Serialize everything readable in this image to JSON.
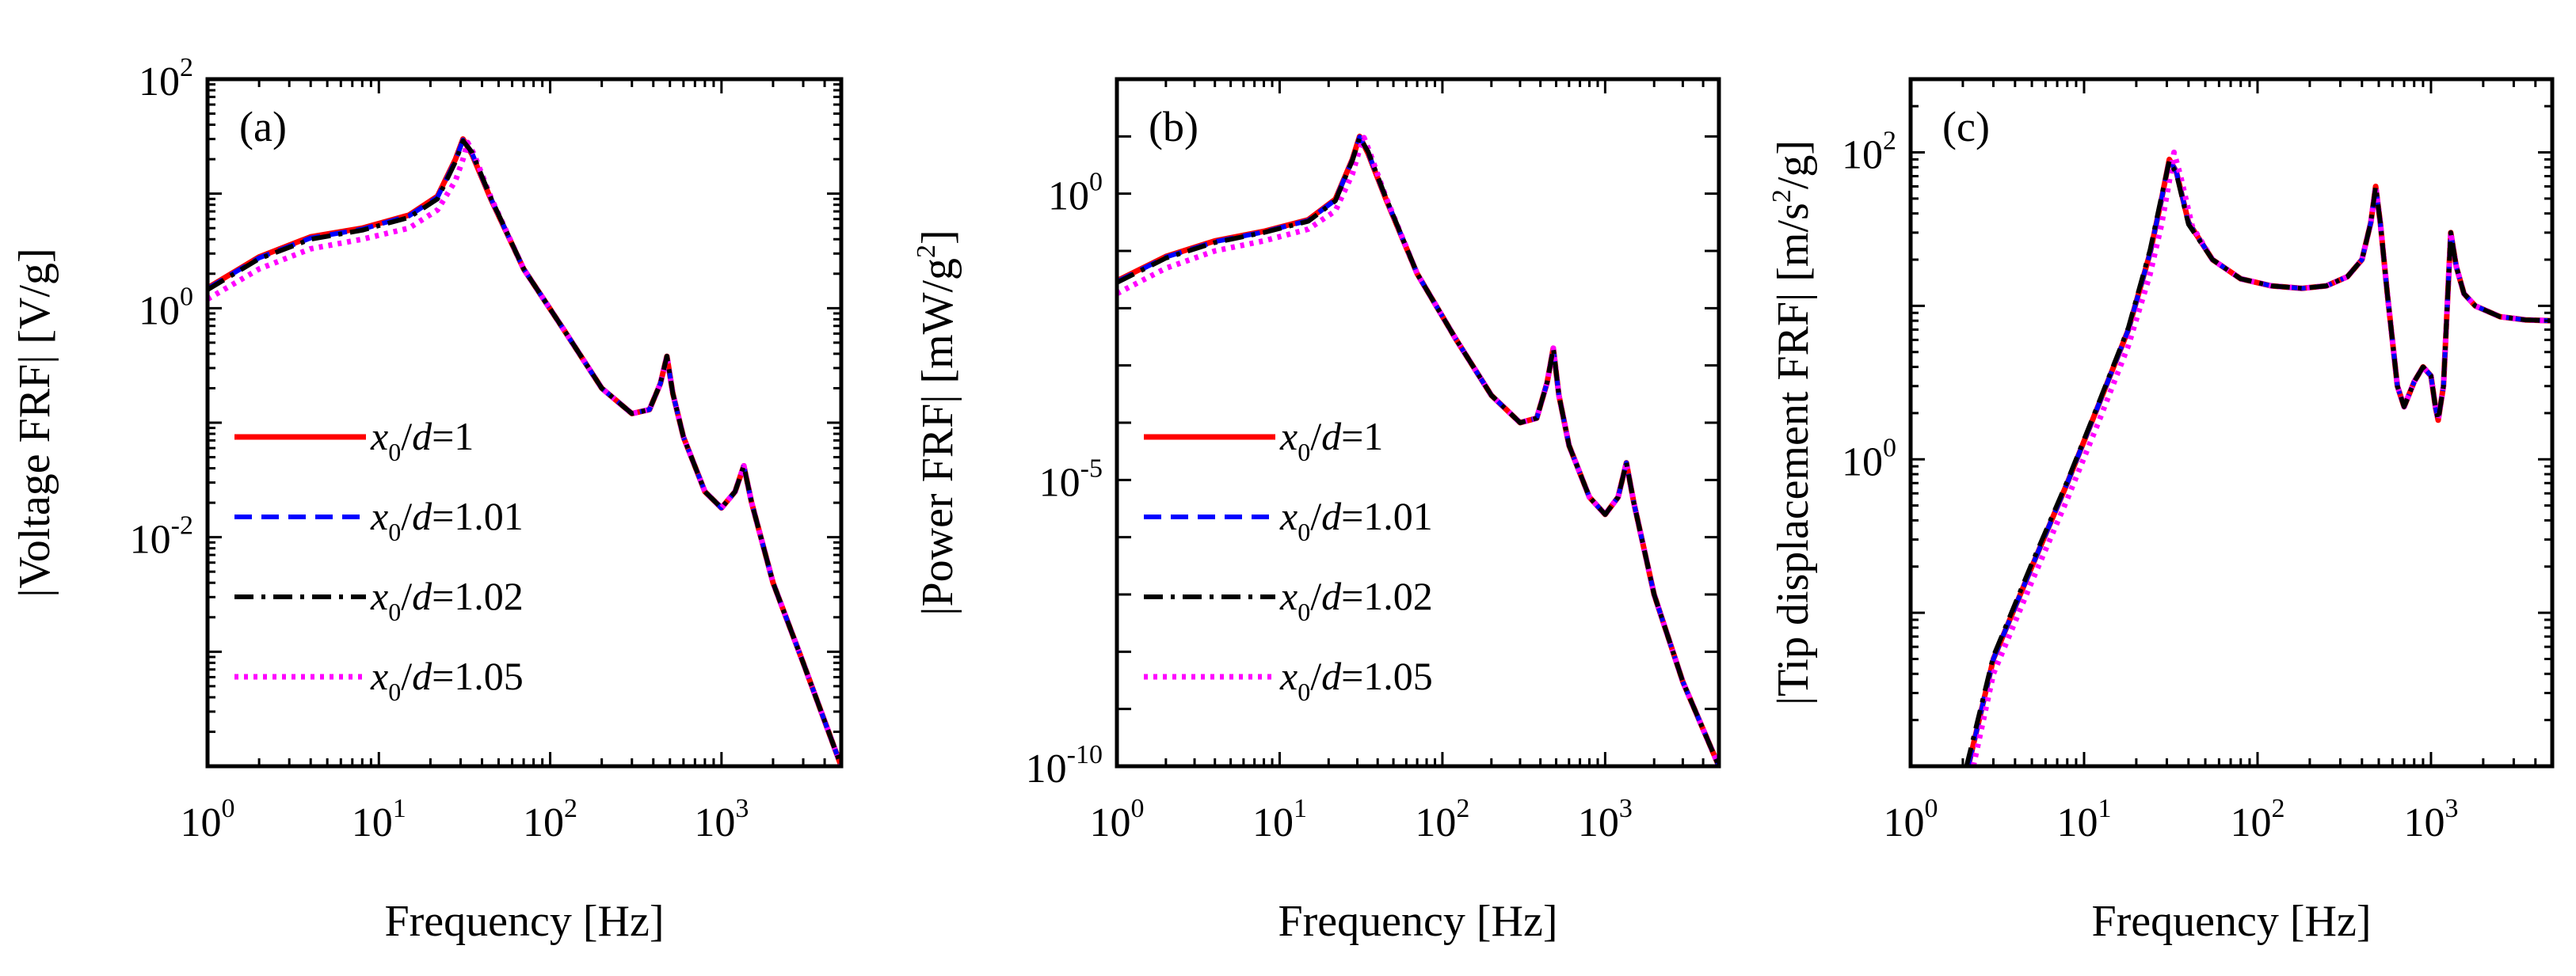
{
  "chart_data": [
    {
      "type": "line",
      "panel_label": "(a)",
      "xlabel": "Frequency [Hz]",
      "ylabel": "|Voltage FRF| [V/g]",
      "xscale": "log",
      "yscale": "log",
      "xlim": [
        1,
        5000
      ],
      "ylim": [
        0.0001,
        100
      ],
      "xticks": [
        {
          "base": "10",
          "exp": "0",
          "value": 1
        },
        {
          "base": "10",
          "exp": "1",
          "value": 10
        },
        {
          "base": "10",
          "exp": "2",
          "value": 100
        },
        {
          "base": "10",
          "exp": "3",
          "value": 1000
        }
      ],
      "yticks": [
        {
          "base": "10",
          "exp": "-2",
          "value": 0.01
        },
        {
          "base": "10",
          "exp": "0",
          "value": 1
        },
        {
          "base": "10",
          "exp": "2",
          "value": 100
        }
      ],
      "legend": {
        "placement": "lower-left"
      },
      "series": [
        {
          "name": "x0/d=1",
          "legend": {
            "var": "x",
            "sub": "0",
            "mid": "/",
            "var2": "d",
            "rest": "=1"
          },
          "color": "#ff0000",
          "style": "solid",
          "x": [
            1,
            2,
            4,
            8,
            15,
            22,
            28,
            31,
            35,
            45,
            70,
            120,
            200,
            300,
            380,
            440,
            480,
            520,
            600,
            800,
            1000,
            1200,
            1350,
            1500,
            2000,
            3000,
            5000
          ],
          "y": [
            1.5,
            2.8,
            4.2,
            5.0,
            6.5,
            9.5,
            20,
            30,
            22,
            9,
            2.2,
            0.65,
            0.2,
            0.12,
            0.13,
            0.22,
            0.38,
            0.18,
            0.075,
            0.025,
            0.018,
            0.025,
            0.042,
            0.02,
            0.004,
            0.0008,
            0.0001
          ]
        },
        {
          "name": "x0/d=1.01",
          "legend": {
            "var": "x",
            "sub": "0",
            "mid": "/",
            "var2": "d",
            "rest": "=1.01"
          },
          "color": "#0000ff",
          "style": "dashed",
          "x": [
            1,
            2,
            4,
            8,
            15,
            22,
            28,
            31,
            35,
            45,
            70,
            120,
            200,
            300,
            380,
            440,
            480,
            520,
            600,
            800,
            1000,
            1200,
            1350,
            1500,
            2000,
            3000,
            5000
          ],
          "y": [
            1.48,
            2.75,
            4.1,
            4.9,
            6.4,
            9.3,
            19.5,
            29.5,
            22.5,
            9.1,
            2.2,
            0.65,
            0.2,
            0.12,
            0.13,
            0.22,
            0.38,
            0.18,
            0.075,
            0.025,
            0.018,
            0.025,
            0.042,
            0.02,
            0.004,
            0.0008,
            0.0001
          ]
        },
        {
          "name": "x0/d=1.02",
          "legend": {
            "var": "x",
            "sub": "0",
            "mid": "/",
            "var2": "d",
            "rest": "=1.02"
          },
          "color": "#000000",
          "style": "dashdot",
          "x": [
            1,
            2,
            4,
            8,
            15,
            22,
            28,
            31,
            35,
            45,
            70,
            120,
            200,
            300,
            380,
            440,
            480,
            520,
            600,
            800,
            1000,
            1200,
            1350,
            1500,
            2000,
            3000,
            5000
          ],
          "y": [
            1.45,
            2.7,
            4.0,
            4.8,
            6.2,
            9.0,
            19,
            29,
            23,
            9.2,
            2.2,
            0.65,
            0.2,
            0.12,
            0.13,
            0.22,
            0.38,
            0.18,
            0.075,
            0.025,
            0.018,
            0.025,
            0.042,
            0.02,
            0.004,
            0.0008,
            0.0001
          ]
        },
        {
          "name": "x0/d=1.05",
          "legend": {
            "var": "x",
            "sub": "0",
            "mid": "/",
            "var2": "d",
            "rest": "=1.05"
          },
          "color": "#ff00ff",
          "style": "dotted",
          "x": [
            1,
            2,
            4,
            8,
            15,
            22,
            28,
            31,
            33,
            36,
            45,
            70,
            120,
            200,
            300,
            380,
            440,
            480,
            520,
            600,
            800,
            1000,
            1200,
            1350,
            1500,
            2000,
            3000,
            5000
          ],
          "y": [
            1.2,
            2.2,
            3.3,
            4.0,
            5.0,
            7.2,
            13,
            20,
            28,
            22,
            9.3,
            2.2,
            0.65,
            0.2,
            0.12,
            0.13,
            0.22,
            0.38,
            0.18,
            0.075,
            0.025,
            0.018,
            0.025,
            0.042,
            0.02,
            0.004,
            0.0008,
            0.0001
          ]
        }
      ]
    },
    {
      "type": "line",
      "panel_label": "(b)",
      "xlabel": "Frequency [Hz]",
      "ylabel": "|Power FRF| [mW/g2]",
      "ylabel_parts": {
        "pre": "|Power FRF| [mW/g",
        "sup": "2",
        "post": "]"
      },
      "xscale": "log",
      "yscale": "log",
      "xlim": [
        1,
        5000
      ],
      "ylim": [
        1e-10,
        100
      ],
      "xticks": [
        {
          "base": "10",
          "exp": "0",
          "value": 1
        },
        {
          "base": "10",
          "exp": "1",
          "value": 10
        },
        {
          "base": "10",
          "exp": "2",
          "value": 100
        },
        {
          "base": "10",
          "exp": "3",
          "value": 1000
        }
      ],
      "yticks": [
        {
          "base": "10",
          "exp": "-10",
          "value": 1e-10
        },
        {
          "base": "10",
          "exp": "-5",
          "value": 1e-05
        },
        {
          "base": "10",
          "exp": "0",
          "value": 1
        }
      ],
      "legend": {
        "placement": "lower-left"
      },
      "series": [
        {
          "name": "x0/d=1",
          "legend": {
            "var": "x",
            "sub": "0",
            "mid": "/",
            "var2": "d",
            "rest": "=1"
          },
          "color": "#ff0000",
          "style": "solid",
          "x": [
            1,
            2,
            4,
            8,
            15,
            22,
            28,
            31,
            35,
            45,
            70,
            120,
            200,
            300,
            380,
            440,
            480,
            520,
            600,
            800,
            1000,
            1200,
            1350,
            1500,
            2000,
            3000,
            5000
          ],
          "y": [
            0.03,
            0.08,
            0.15,
            0.22,
            0.35,
            0.8,
            4.0,
            10,
            5,
            0.8,
            0.04,
            0.003,
            0.0003,
            0.0001,
            0.00012,
            0.0005,
            0.002,
            0.0003,
            4e-05,
            5e-06,
            2.5e-06,
            5e-06,
            2e-05,
            4e-06,
            1e-07,
            3e-09,
            1e-10
          ]
        },
        {
          "name": "x0/d=1.01",
          "legend": {
            "var": "x",
            "sub": "0",
            "mid": "/",
            "var2": "d",
            "rest": "=1.01"
          },
          "color": "#0000ff",
          "style": "dashed",
          "x": [
            1,
            2,
            4,
            8,
            15,
            22,
            28,
            31,
            35,
            45,
            70,
            120,
            200,
            300,
            380,
            440,
            480,
            520,
            600,
            800,
            1000,
            1200,
            1350,
            1500,
            2000,
            3000,
            5000
          ],
          "y": [
            0.029,
            0.078,
            0.145,
            0.215,
            0.34,
            0.78,
            3.9,
            9.8,
            5.2,
            0.82,
            0.04,
            0.003,
            0.0003,
            0.0001,
            0.00012,
            0.0005,
            0.002,
            0.0003,
            4e-05,
            5e-06,
            2.5e-06,
            5e-06,
            2e-05,
            4e-06,
            1e-07,
            3e-09,
            1e-10
          ]
        },
        {
          "name": "x0/d=1.02",
          "legend": {
            "var": "x",
            "sub": "0",
            "mid": "/",
            "var2": "d",
            "rest": "=1.02"
          },
          "color": "#000000",
          "style": "dashdot",
          "x": [
            1,
            2,
            4,
            8,
            15,
            22,
            28,
            31,
            35,
            45,
            70,
            120,
            200,
            300,
            380,
            440,
            480,
            520,
            600,
            800,
            1000,
            1200,
            1350,
            1500,
            2000,
            3000,
            5000
          ],
          "y": [
            0.028,
            0.075,
            0.14,
            0.21,
            0.33,
            0.75,
            3.8,
            9.6,
            5.4,
            0.84,
            0.04,
            0.003,
            0.0003,
            0.0001,
            0.00012,
            0.0005,
            0.002,
            0.0003,
            4e-05,
            5e-06,
            2.5e-06,
            5e-06,
            2e-05,
            4e-06,
            1e-07,
            3e-09,
            1e-10
          ]
        },
        {
          "name": "x0/d=1.05",
          "legend": {
            "var": "x",
            "sub": "0",
            "mid": "/",
            "var2": "d",
            "rest": "=1.05"
          },
          "color": "#ff00ff",
          "style": "dotted",
          "x": [
            1,
            2,
            4,
            8,
            15,
            22,
            28,
            31,
            33,
            36,
            45,
            70,
            120,
            200,
            300,
            380,
            440,
            480,
            520,
            600,
            800,
            1000,
            1200,
            1350,
            1500,
            2000,
            3000,
            5000
          ],
          "y": [
            0.018,
            0.05,
            0.1,
            0.15,
            0.24,
            0.5,
            2.2,
            6,
            9.5,
            5,
            0.86,
            0.04,
            0.003,
            0.0003,
            0.0001,
            0.00012,
            0.0005,
            0.002,
            0.0003,
            4e-05,
            5e-06,
            2.5e-06,
            5e-06,
            2e-05,
            4e-06,
            1e-07,
            3e-09,
            1e-10
          ]
        }
      ]
    },
    {
      "type": "line",
      "panel_label": "(c)",
      "xlabel": "Frequency [Hz]",
      "ylabel": "|Tip displacement FRF| [m/s2/g]",
      "ylabel_parts": {
        "pre": "|Tip displacement FRF| [m/s",
        "sup": "2",
        "post": "/g]"
      },
      "xscale": "log",
      "yscale": "log",
      "xlim": [
        1,
        5000
      ],
      "ylim": [
        0.01,
        300
      ],
      "xticks": [
        {
          "base": "10",
          "exp": "0",
          "value": 1
        },
        {
          "base": "10",
          "exp": "1",
          "value": 10
        },
        {
          "base": "10",
          "exp": "2",
          "value": 100
        },
        {
          "base": "10",
          "exp": "3",
          "value": 1000
        }
      ],
      "yticks": [
        {
          "base": "10",
          "exp": "0",
          "value": 1
        },
        {
          "base": "10",
          "exp": "2",
          "value": 100
        }
      ],
      "series": [
        {
          "name": "x0/d=1",
          "color": "#ff0000",
          "style": "solid",
          "x": [
            2.15,
            3,
            5,
            8,
            12,
            18,
            24,
            28,
            31,
            34,
            40,
            55,
            80,
            120,
            180,
            250,
            330,
            400,
            450,
            480,
            510,
            560,
            640,
            700,
            800,
            900,
            1000,
            1060,
            1100,
            1180,
            1250,
            1300,
            1400,
            1550,
            1800,
            2500,
            3500,
            5000
          ],
          "y": [
            0.01,
            0.05,
            0.2,
            0.7,
            2.2,
            7,
            22,
            50,
            90,
            75,
            35,
            20,
            15,
            13.5,
            13,
            13.5,
            15.5,
            20,
            35,
            60,
            35,
            12,
            3,
            2.2,
            3.2,
            4,
            3.5,
            2.2,
            1.8,
            3,
            12,
            30,
            18,
            12,
            10,
            8.5,
            8.1,
            8
          ]
        },
        {
          "name": "x0/d=1.01",
          "color": "#0000ff",
          "style": "dashed",
          "x": [
            2.15,
            3,
            5,
            8,
            12,
            18,
            24,
            28,
            31,
            34,
            40,
            55,
            80,
            120,
            180,
            250,
            330,
            400,
            450,
            480,
            510,
            560,
            640,
            700,
            800,
            900,
            1000,
            1060,
            1100,
            1180,
            1250,
            1300,
            1400,
            1550,
            1800,
            2500,
            3500,
            5000
          ],
          "y": [
            0.01,
            0.05,
            0.2,
            0.7,
            2.2,
            7,
            22,
            50,
            90,
            75,
            35,
            20,
            15,
            13.5,
            13,
            13.5,
            15.5,
            20,
            35,
            60,
            35,
            12,
            3,
            2.2,
            3.2,
            4,
            3.5,
            2.2,
            1.8,
            3,
            12,
            30,
            18,
            12,
            10,
            8.5,
            8.1,
            8
          ]
        },
        {
          "name": "x0/d=1.02",
          "color": "#000000",
          "style": "dashdot",
          "x": [
            2.1,
            3,
            5,
            8,
            12,
            18,
            24,
            28,
            31,
            34,
            40,
            55,
            80,
            120,
            180,
            250,
            330,
            400,
            450,
            480,
            510,
            560,
            640,
            700,
            800,
            900,
            1000,
            1060,
            1100,
            1180,
            1250,
            1300,
            1400,
            1550,
            1800,
            2500,
            3500,
            5000
          ],
          "y": [
            0.01,
            0.052,
            0.21,
            0.72,
            2.25,
            7.2,
            23,
            52,
            88,
            73,
            34,
            20,
            15,
            13.5,
            13,
            13.5,
            15.5,
            20,
            35,
            60,
            35,
            12,
            3,
            2.2,
            3.2,
            4,
            3.5,
            2.2,
            1.8,
            3,
            12,
            30,
            18,
            12,
            10,
            8.5,
            8.1,
            8
          ]
        },
        {
          "name": "x0/d=1.05",
          "color": "#ff00ff",
          "style": "dotted",
          "x": [
            2.3,
            3,
            5,
            8,
            12,
            18,
            24,
            28,
            31,
            33,
            36,
            42,
            55,
            80,
            120,
            180,
            250,
            330,
            400,
            450,
            480,
            510,
            560,
            640,
            700,
            800,
            900,
            1000,
            1060,
            1100,
            1180,
            1250,
            1300,
            1400,
            1550,
            1800,
            2500,
            3500,
            5000
          ],
          "y": [
            0.01,
            0.04,
            0.16,
            0.55,
            1.7,
            5.5,
            16,
            34,
            65,
            100,
            70,
            33,
            20,
            15,
            13.5,
            13,
            13.5,
            15.5,
            20,
            35,
            60,
            35,
            12,
            3,
            2.2,
            3.2,
            4,
            3.5,
            2.2,
            1.8,
            3,
            12,
            30,
            18,
            12,
            10,
            8.5,
            8.1,
            8
          ]
        }
      ]
    }
  ]
}
